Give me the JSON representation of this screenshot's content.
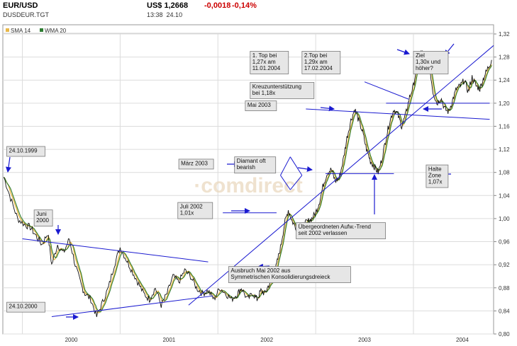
{
  "header": {
    "symbol": "EUR/USD",
    "code": "DUSDEUR.TGT",
    "price": "US$ 1,2668",
    "time": "13:38",
    "date": "24.10",
    "change": "-0,0018",
    "change_pct": "-0,14%"
  },
  "legend": [
    {
      "label": "SMA 14",
      "color": "#e8b84a"
    },
    {
      "label": "WMA 20",
      "color": "#2e7d32"
    }
  ],
  "watermark": "comdirect",
  "colors": {
    "price": "#111111",
    "sma": "#e8b84a",
    "wma": "#2e7d32",
    "trend": "#1a1ad0",
    "grid": "#dcdcdc",
    "annotation_bg": "#e6e6e6"
  },
  "chart_data": {
    "type": "line",
    "title": "EUR/USD",
    "xlabel": "",
    "ylabel": "",
    "ylim": [
      0.8,
      1.32
    ],
    "xlim": [
      1999.8,
      2004.82
    ],
    "x_ticks": [
      "2000",
      "2001",
      "2002",
      "2003",
      "2004"
    ],
    "y_ticks": [
      "1,32",
      "1,28",
      "1,24",
      "1,20",
      "1,16",
      "1,12",
      "1,08",
      "1,04",
      "1,00",
      "0,96",
      "0,92",
      "0,88",
      "0,84",
      "0,80"
    ],
    "series": [
      {
        "name": "EUR/USD",
        "x": [
          1999.81,
          1999.88,
          1999.95,
          2000.02,
          2000.08,
          2000.14,
          2000.2,
          2000.26,
          2000.3,
          2000.36,
          2000.42,
          2000.48,
          2000.54,
          2000.6,
          2000.64,
          2000.7,
          2000.76,
          2000.82,
          2000.88,
          2000.94,
          2001.0,
          2001.06,
          2001.12,
          2001.18,
          2001.24,
          2001.3,
          2001.36,
          2001.42,
          2001.48,
          2001.54,
          2001.6,
          2001.66,
          2001.72,
          2001.78,
          2001.84,
          2001.9,
          2001.96,
          2002.02,
          2002.08,
          2002.14,
          2002.2,
          2002.24,
          2002.3,
          2002.36,
          2002.4,
          2002.44,
          2002.48,
          2002.52,
          2002.56,
          2002.6,
          2002.64,
          2002.68,
          2002.72,
          2002.76,
          2002.8,
          2002.84,
          2002.88,
          2002.92,
          2002.96,
          2003.0,
          2003.04,
          2003.08,
          2003.12,
          2003.16,
          2003.2,
          2003.24,
          2003.28,
          2003.32,
          2003.36,
          2003.4,
          2003.44,
          2003.48,
          2003.52,
          2003.56,
          2003.6,
          2003.64,
          2003.68,
          2003.72,
          2003.76,
          2003.8,
          2003.84,
          2003.88,
          2003.92,
          2003.96,
          2004.0,
          2004.04,
          2004.08,
          2004.12,
          2004.16,
          2004.2,
          2004.24,
          2004.28,
          2004.32,
          2004.36,
          2004.4,
          2004.44,
          2004.48,
          2004.52,
          2004.56,
          2004.6,
          2004.64,
          2004.68,
          2004.72,
          2004.76,
          2004.8
        ],
        "values": [
          1.072,
          1.035,
          1.0,
          0.99,
          0.985,
          0.97,
          0.955,
          0.975,
          0.92,
          0.955,
          0.94,
          0.965,
          0.92,
          0.885,
          0.87,
          0.86,
          0.83,
          0.855,
          0.88,
          0.92,
          0.95,
          0.93,
          0.91,
          0.89,
          0.87,
          0.86,
          0.88,
          0.85,
          0.87,
          0.9,
          0.89,
          0.91,
          0.9,
          0.88,
          0.87,
          0.875,
          0.86,
          0.88,
          0.87,
          0.86,
          0.87,
          0.88,
          0.86,
          0.87,
          0.86,
          0.875,
          0.87,
          0.885,
          0.89,
          0.92,
          0.95,
          0.99,
          1.015,
          0.995,
          0.985,
          0.98,
          0.99,
          0.995,
          1.0,
          1.01,
          1.03,
          1.06,
          1.08,
          1.085,
          1.065,
          1.07,
          1.1,
          1.14,
          1.17,
          1.19,
          1.17,
          1.15,
          1.12,
          1.1,
          1.09,
          1.08,
          1.105,
          1.14,
          1.17,
          1.19,
          1.18,
          1.16,
          1.18,
          1.21,
          1.23,
          1.27,
          1.29,
          1.28,
          1.27,
          1.22,
          1.2,
          1.21,
          1.19,
          1.185,
          1.205,
          1.225,
          1.23,
          1.24,
          1.22,
          1.245,
          1.23,
          1.225,
          1.245,
          1.26,
          1.275
        ]
      },
      {
        "name": "SMA 14",
        "values": []
      },
      {
        "name": "WMA 20",
        "values": []
      }
    ],
    "trend_lines": [
      {
        "name": "resistance-2000-2002",
        "x": [
          2000.0,
          2001.9
        ],
        "y": [
          0.965,
          0.925
        ]
      },
      {
        "name": "support-2000-2002",
        "x": [
          2000.3,
          2001.95
        ],
        "y": [
          0.83,
          0.866
        ]
      },
      {
        "name": "uptrend-2002-2004",
        "x": [
          2001.7,
          2004.82
        ],
        "y": [
          0.85,
          1.3
        ]
      },
      {
        "name": "level-mai-2003",
        "x": [
          2002.9,
          2004.78
        ],
        "y": [
          1.19,
          1.172
        ]
      },
      {
        "name": "level-juli-2002",
        "x": [
          2002.05,
          2002.6
        ],
        "y": [
          1.01,
          1.01
        ]
      },
      {
        "name": "level-1.20",
        "x": [
          2003.72,
          2004.78
        ],
        "y": [
          1.2,
          1.2
        ]
      },
      {
        "name": "level-1.08",
        "x": [
          2003.1,
          2003.8
        ],
        "y": [
          1.078,
          1.078
        ]
      },
      {
        "name": "triangle-top",
        "x": [
          2003.5,
          2003.95
        ],
        "y": [
          1.237,
          1.207
        ]
      },
      {
        "name": "diamond-left-up",
        "x": [
          2002.64,
          2002.74
        ],
        "y": [
          1.075,
          1.107
        ]
      },
      {
        "name": "diamond-left-down",
        "x": [
          2002.64,
          2002.74
        ],
        "y": [
          1.075,
          1.05
        ]
      },
      {
        "name": "diamond-right-up",
        "x": [
          2002.74,
          2002.86
        ],
        "y": [
          1.107,
          1.075
        ]
      },
      {
        "name": "diamond-right-down",
        "x": [
          2002.74,
          2002.86
        ],
        "y": [
          1.05,
          1.075
        ]
      }
    ],
    "annotations": [
      {
        "text": "24.10.1999",
        "x": 1999.84,
        "y": 1.125
      },
      {
        "text": "Juni\n2000",
        "x": 2000.12,
        "y": 1.015
      },
      {
        "text": "24.10.2000",
        "x": 1999.84,
        "y": 0.855
      },
      {
        "text": "März 2003",
        "x": 2001.6,
        "y": 1.103
      },
      {
        "text": "Diamant oft\nbearish",
        "x": 2002.17,
        "y": 1.107
      },
      {
        "text": "Juli 2002\n1,01x",
        "x": 2001.59,
        "y": 1.028
      },
      {
        "text": "1. Top bei\n1,27x am\n11.01.2004",
        "x": 2002.33,
        "y": 1.29
      },
      {
        "text": "2.Top bei\n1,29x am\n17.02.2004",
        "x": 2002.86,
        "y": 1.29
      },
      {
        "text": "Kreuzunterstützung\nbei 1,18x",
        "x": 2002.33,
        "y": 1.236
      },
      {
        "text": "Mai 2003",
        "x": 2002.28,
        "y": 1.204
      },
      {
        "text": "Ziel\n1,30x und\nhöher?",
        "x": 2004.0,
        "y": 1.29
      },
      {
        "text": "Halte\nZone\n1,07x",
        "x": 2004.13,
        "y": 1.093
      },
      {
        "text": "Übergeordneten Aufw.-Trend\nseit 2002 verlassen",
        "x": 2002.8,
        "y": 0.993
      },
      {
        "text": "Ausbruch Mai 2002 aus\nSymmetrischen Konsolidierungsdreieck",
        "x": 2002.11,
        "y": 0.917
      }
    ]
  }
}
